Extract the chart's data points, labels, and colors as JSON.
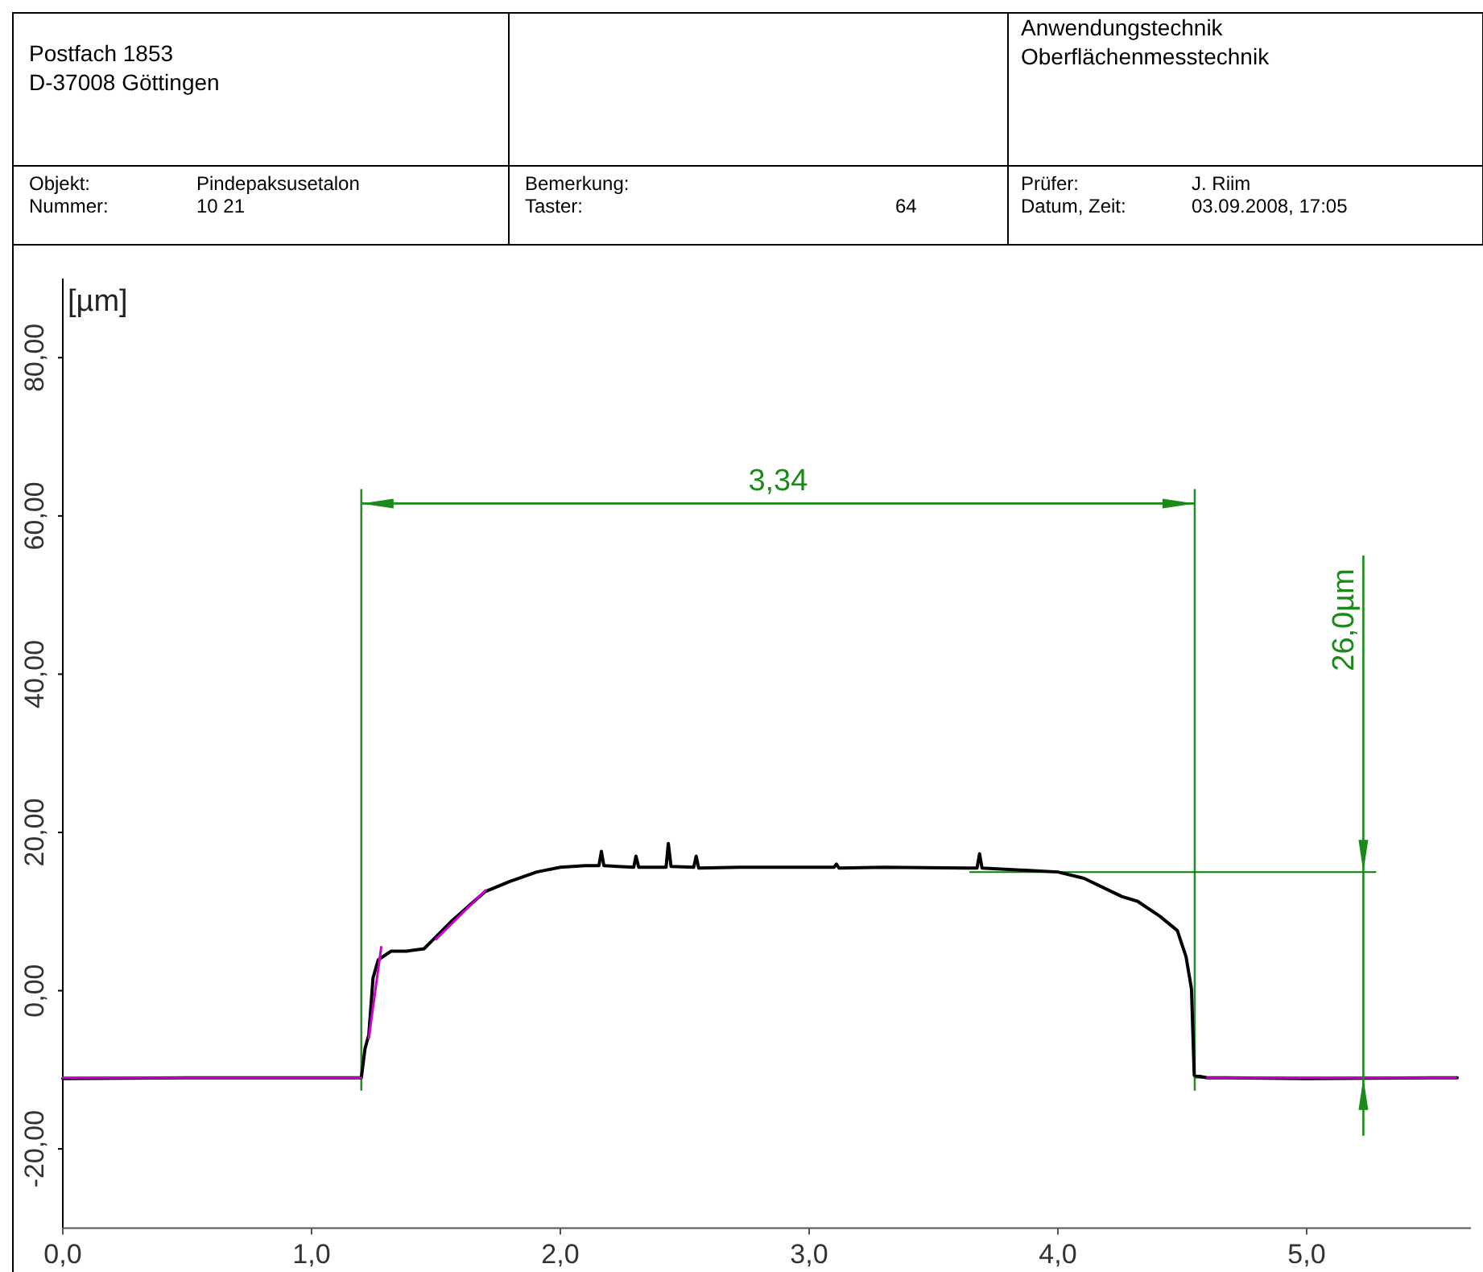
{
  "chart_data": [
    {
      "type": "other",
      "annotations": [
        "Postfach 1853",
        "D-37008 Göttingen",
        "Anwendungstechnik",
        "Oberflächenmesstechnik",
        "Objekt:",
        "Pindepaksusetalon",
        "Nummer:",
        "10 21",
        "Bemerkung:",
        "Taster:",
        "64",
        "Prüfer:",
        "J. Riim",
        "Datum, Zeit:",
        "03.09.2008, 17:05"
      ]
    },
    {
      "type": "line",
      "ylabel": "[µm]",
      "xlim": [
        0,
        5.66
      ],
      "ylim": [
        -30,
        90
      ],
      "xticks": [
        {
          "value": 0,
          "label": "0,0"
        },
        {
          "value": 1,
          "label": "1,0"
        },
        {
          "value": 2,
          "label": "2,0"
        },
        {
          "value": 3,
          "label": "3,0"
        },
        {
          "value": 4,
          "label": "4,0"
        },
        {
          "value": 5,
          "label": "5,0"
        }
      ],
      "yticks": [
        {
          "value": -20,
          "label": "-20,00"
        },
        {
          "value": 0,
          "label": "0,00"
        },
        {
          "value": 20,
          "label": "20,00"
        },
        {
          "value": 40,
          "label": "40,00"
        },
        {
          "value": 60,
          "label": "60,00"
        },
        {
          "value": 80,
          "label": "80,00"
        }
      ],
      "grid": false,
      "marker": "none",
      "line_style": "solid",
      "series": [
        {
          "color": "#000000",
          "x": [
            0,
            0.5,
            1.2,
            1.215,
            1.23,
            1.247,
            1.268,
            1.32,
            1.383,
            1.452,
            1.484,
            1.56,
            1.635,
            1.697,
            1.797,
            1.905,
            2.0,
            2.1,
            2.155,
            2.165,
            2.175,
            2.295,
            2.304,
            2.315,
            2.425,
            2.434,
            2.445,
            2.536,
            2.546,
            2.556,
            2.72,
            3.1,
            3.11,
            3.12,
            3.3,
            3.63,
            3.675,
            3.685,
            3.695,
            4.0,
            4.105,
            4.257,
            4.32,
            4.41,
            4.48,
            4.515,
            4.537,
            4.548,
            4.6,
            5.0,
            5.605
          ],
          "values": [
            -11.1,
            -11,
            -11,
            -7.3,
            -5.6,
            1.6,
            3.9,
            5.0,
            5.0,
            5.3,
            6.3,
            8.7,
            10.8,
            12.5,
            13.8,
            15.0,
            15.6,
            15.8,
            15.8,
            17.6,
            15.8,
            15.6,
            17.0,
            15.6,
            15.6,
            18.6,
            15.7,
            15.6,
            17.0,
            15.5,
            15.6,
            15.6,
            16.0,
            15.5,
            15.6,
            15.5,
            15.5,
            17.3,
            15.5,
            15.0,
            14.2,
            11.9,
            11.3,
            9.4,
            7.6,
            4.3,
            0.2,
            -10.7,
            -11,
            -11.1,
            -11
          ]
        },
        {
          "color": "#cc00cc",
          "x": [
            0,
            1.2,
            1.21,
            1.23,
            1.28,
            1.29,
            1.5,
            1.7,
            1.71,
            4.6,
            5.6
          ],
          "values": [
            -11,
            -11,
            null,
            -6,
            5.5,
            null,
            6.5,
            12.7,
            null,
            -11,
            -11
          ]
        }
      ],
      "ref_lines": [
        {
          "axis": "x",
          "value": 1.2,
          "color": "#2e8b2e"
        },
        {
          "axis": "x",
          "value": 4.55,
          "color": "#2e8b2e"
        },
        {
          "axis": "y",
          "value": 15,
          "color": "#008000"
        },
        {
          "axis": "y",
          "value": -11,
          "color": "#008000"
        }
      ],
      "annotations": [
        "3,34",
        "26,0µm"
      ]
    }
  ]
}
